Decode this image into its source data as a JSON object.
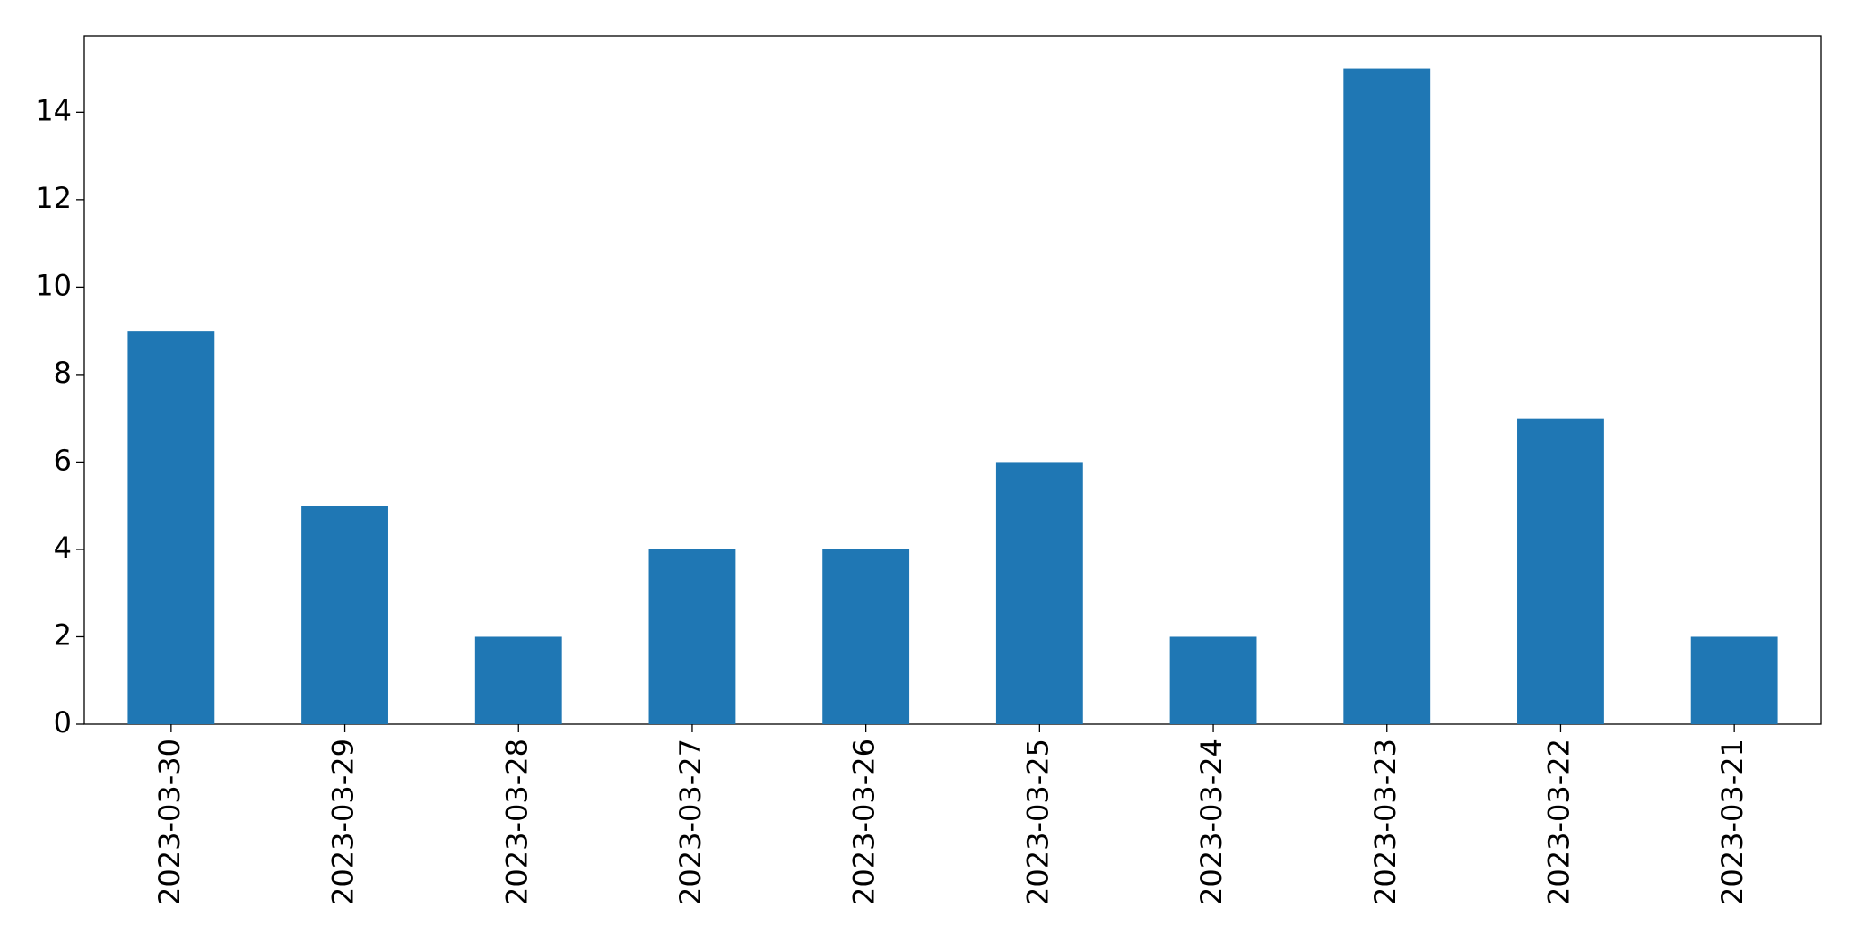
{
  "chart_data": {
    "type": "bar",
    "categories": [
      "2023-03-30",
      "2023-03-29",
      "2023-03-28",
      "2023-03-27",
      "2023-03-26",
      "2023-03-25",
      "2023-03-24",
      "2023-03-23",
      "2023-03-22",
      "2023-03-21"
    ],
    "values": [
      9,
      5,
      2,
      4,
      4,
      6,
      2,
      15,
      7,
      2
    ],
    "color": "#1f77b4",
    "ylim": [
      0,
      15.75
    ],
    "yticks": [
      0,
      2,
      4,
      6,
      8,
      10,
      12,
      14
    ],
    "grid": false
  }
}
